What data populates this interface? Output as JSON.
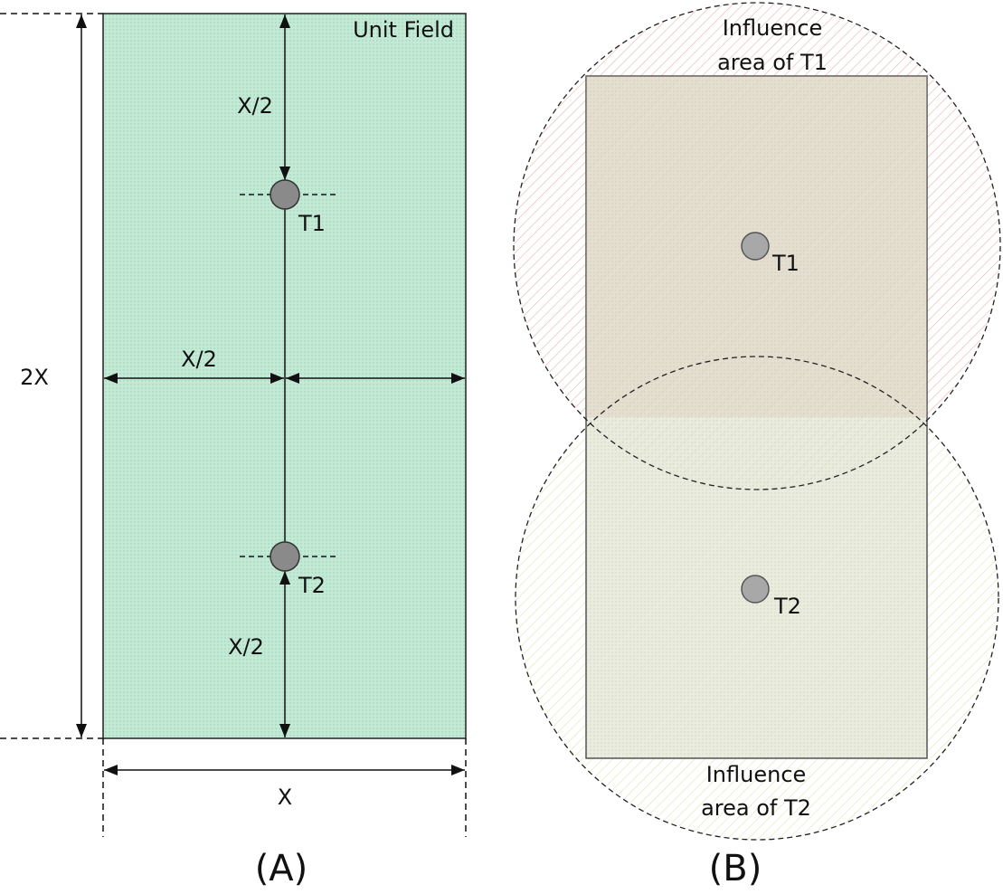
{
  "panel_a": {
    "label": "(A)",
    "field_label": "Unit Field",
    "dimensions": {
      "top_half": "X/2",
      "horizontal_half": "X/2",
      "bottom_half": "X/2",
      "height": "2X",
      "width": "X"
    },
    "trees": [
      "T1",
      "T2"
    ]
  },
  "panel_b": {
    "label": "(B)",
    "trees": [
      "T1",
      "T2"
    ],
    "influence_areas": [
      {
        "lines": [
          "Influence",
          "area of T1"
        ]
      },
      {
        "lines": [
          "Influence",
          "area of T2"
        ]
      }
    ]
  }
}
